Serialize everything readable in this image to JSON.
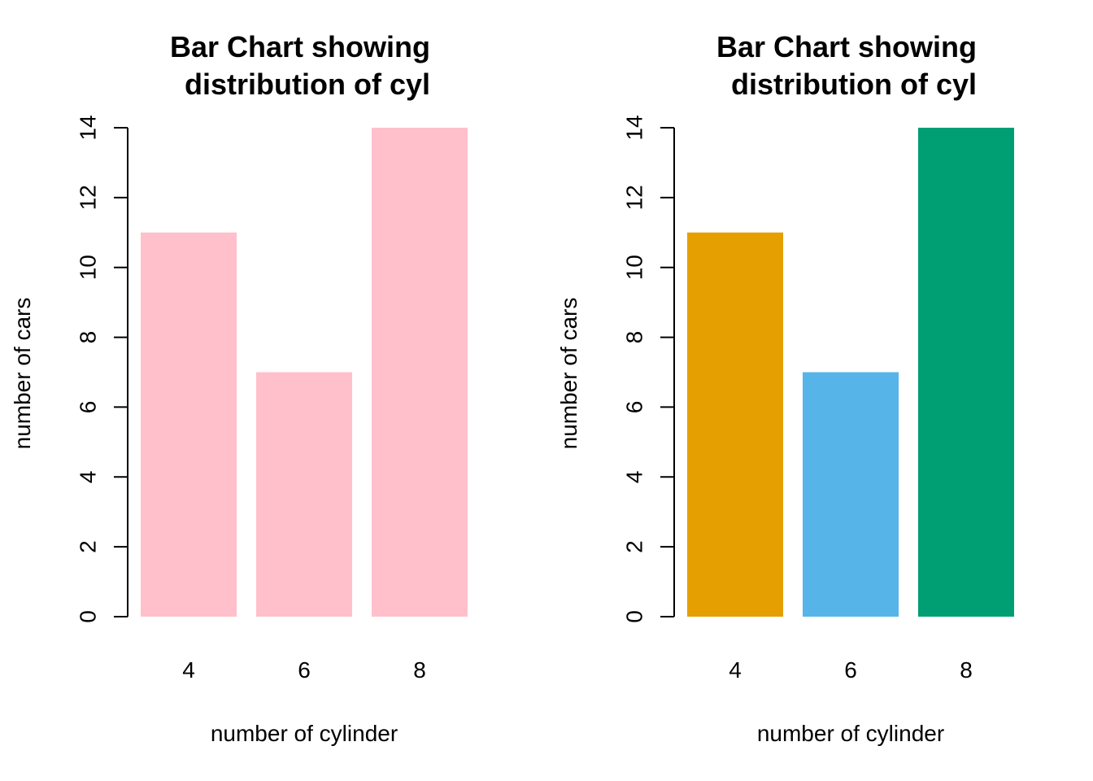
{
  "chart_data": [
    {
      "type": "bar",
      "title_lines": [
        "Bar Chart showing",
        "distribution of cyl"
      ],
      "xlabel": "number of cylinder",
      "ylabel": "number of cars",
      "categories": [
        "4",
        "6",
        "8"
      ],
      "values": [
        11,
        7,
        14
      ],
      "colors": [
        "#FFC0CB",
        "#FFC0CB",
        "#FFC0CB"
      ],
      "ylim": [
        0,
        14
      ],
      "yticks": [
        0,
        2,
        4,
        6,
        8,
        10,
        12,
        14
      ],
      "grid": false
    },
    {
      "type": "bar",
      "title_lines": [
        "Bar Chart showing",
        "distribution of cyl"
      ],
      "xlabel": "number of cylinder",
      "ylabel": "number of cars",
      "categories": [
        "4",
        "6",
        "8"
      ],
      "values": [
        11,
        7,
        14
      ],
      "colors": [
        "#E69F00",
        "#56B4E9",
        "#009E73"
      ],
      "ylim": [
        0,
        14
      ],
      "yticks": [
        0,
        2,
        4,
        6,
        8,
        10,
        12,
        14
      ],
      "grid": false
    }
  ]
}
